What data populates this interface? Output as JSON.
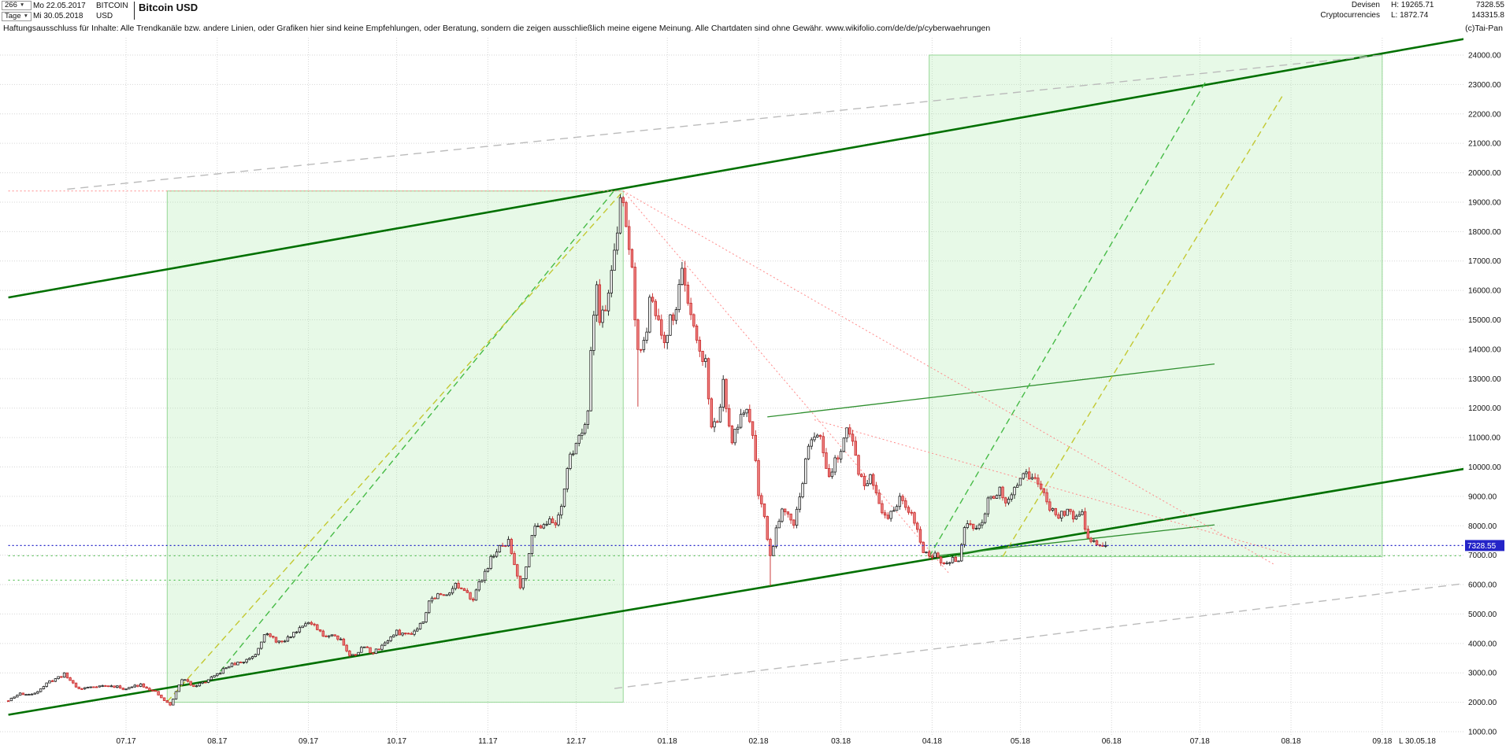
{
  "header": {
    "bars_select": "266",
    "timeframe_select": "Tage",
    "date_from": "Mo 22.05.2017",
    "date_to": "Mi 30.05.2018",
    "symbol": "BITCOIN",
    "symbol_row2": "USD",
    "title": "Bitcoin USD",
    "category_line1": "Devisen",
    "category_line2": "Cryptocurrencies",
    "high_label": "H: 19265.71",
    "low_label": "L: 1872.74",
    "last_price_text": "7328.55",
    "volume_text": "143315.8",
    "credit": "(c)Tai-Pan"
  },
  "disclaimer": {
    "text": "Haftungsausschluss für Inhalte: Alle Trendkanäle bzw. andere Linien, oder Grafiken hier sind keine Empfehlungen, oder Beratung, sondern die zeigen ausschließlich meine eigene Meinung. Alle Chartdaten sind ohne Gewähr.",
    "url": "www.wikifolio.com/de/de/p/cyberwaehrungen"
  },
  "chart_data": {
    "type": "candlestick",
    "instrument": "Bitcoin USD",
    "timeframe": "Tage",
    "x_start_date": "22.05.2017",
    "x_end_date": "30.05.2018",
    "last_price": 7328.55,
    "high": 19265.71,
    "low": 1872.74,
    "bars_visible": 266,
    "y_axis": {
      "min": 1000,
      "max": 24000,
      "step": 1000
    },
    "x_axis": {
      "labels": [
        "07.17",
        "08.17",
        "09.17",
        "10.17",
        "11.17",
        "12.17",
        "01.18",
        "02.18",
        "03.18",
        "04.18",
        "05.18",
        "06.18",
        "07.18",
        "08.18",
        "09.18"
      ],
      "label_days": [
        40,
        71,
        102,
        132,
        163,
        193,
        224,
        255,
        283,
        314,
        344,
        375,
        405,
        436,
        467
      ],
      "last_bar_label": "L  30.05.18"
    },
    "keyframes": [
      [
        0,
        2050
      ],
      [
        4,
        2300
      ],
      [
        8,
        2250
      ],
      [
        14,
        2700
      ],
      [
        19,
        2950
      ],
      [
        24,
        2450
      ],
      [
        30,
        2560
      ],
      [
        36,
        2540
      ],
      [
        40,
        2450
      ],
      [
        45,
        2620
      ],
      [
        50,
        2330
      ],
      [
        53,
        2060
      ],
      [
        55,
        1900
      ],
      [
        57,
        2350
      ],
      [
        59,
        2800
      ],
      [
        63,
        2560
      ],
      [
        67,
        2700
      ],
      [
        70,
        2870
      ],
      [
        75,
        3250
      ],
      [
        80,
        3380
      ],
      [
        84,
        3650
      ],
      [
        87,
        4350
      ],
      [
        90,
        4150
      ],
      [
        93,
        4010
      ],
      [
        97,
        4350
      ],
      [
        101,
        4750
      ],
      [
        104,
        4560
      ],
      [
        107,
        4260
      ],
      [
        110,
        4310
      ],
      [
        113,
        4160
      ],
      [
        116,
        3560
      ],
      [
        118,
        3660
      ],
      [
        121,
        3900
      ],
      [
        124,
        3660
      ],
      [
        127,
        3950
      ],
      [
        130,
        4200
      ],
      [
        132,
        4380
      ],
      [
        135,
        4310
      ],
      [
        138,
        4420
      ],
      [
        141,
        4800
      ],
      [
        143,
        5450
      ],
      [
        146,
        5650
      ],
      [
        148,
        5610
      ],
      [
        152,
        6000
      ],
      [
        155,
        5710
      ],
      [
        158,
        5560
      ],
      [
        162,
        6450
      ],
      [
        165,
        7050
      ],
      [
        168,
        7300
      ],
      [
        170,
        7450
      ],
      [
        172,
        6700
      ],
      [
        174,
        5960
      ],
      [
        176,
        6560
      ],
      [
        178,
        7800
      ],
      [
        181,
        8050
      ],
      [
        183,
        8160
      ],
      [
        186,
        8060
      ],
      [
        188,
        8750
      ],
      [
        190,
        9950
      ],
      [
        193,
        10900
      ],
      [
        195,
        11200
      ],
      [
        197,
        12000
      ],
      [
        198,
        14100
      ],
      [
        200,
        16200
      ],
      [
        201,
        15100
      ],
      [
        203,
        15300
      ],
      [
        205,
        16750
      ],
      [
        207,
        17800
      ],
      [
        208,
        19100
      ],
      [
        209,
        18960
      ],
      [
        211,
        17500
      ],
      [
        212,
        16600
      ],
      [
        214,
        13900
      ],
      [
        216,
        14100
      ],
      [
        218,
        15500
      ],
      [
        220,
        15300
      ],
      [
        223,
        14000
      ],
      [
        225,
        15100
      ],
      [
        227,
        15250
      ],
      [
        229,
        17000
      ],
      [
        231,
        15300
      ],
      [
        233,
        14600
      ],
      [
        235,
        13850
      ],
      [
        237,
        13600
      ],
      [
        239,
        11300
      ],
      [
        241,
        11600
      ],
      [
        243,
        12850
      ],
      [
        245,
        11200
      ],
      [
        246,
        10900
      ],
      [
        248,
        11500
      ],
      [
        251,
        11800
      ],
      [
        253,
        11200
      ],
      [
        255,
        9150
      ],
      [
        257,
        8300
      ],
      [
        259,
        6950
      ],
      [
        261,
        7900
      ],
      [
        263,
        8650
      ],
      [
        265,
        8500
      ],
      [
        267,
        8100
      ],
      [
        269,
        8900
      ],
      [
        271,
        10150
      ],
      [
        273,
        11100
      ],
      [
        275,
        11250
      ],
      [
        277,
        10500
      ],
      [
        279,
        9700
      ],
      [
        281,
        10300
      ],
      [
        283,
        10350
      ],
      [
        285,
        11250
      ],
      [
        287,
        10900
      ],
      [
        289,
        9900
      ],
      [
        291,
        9300
      ],
      [
        293,
        9600
      ],
      [
        295,
        9000
      ],
      [
        297,
        8300
      ],
      [
        299,
        8300
      ],
      [
        301,
        8600
      ],
      [
        303,
        8950
      ],
      [
        305,
        8500
      ],
      [
        307,
        8450
      ],
      [
        309,
        7900
      ],
      [
        311,
        7100
      ],
      [
        313,
        6900
      ],
      [
        315,
        7050
      ],
      [
        317,
        6750
      ],
      [
        319,
        6650
      ],
      [
        321,
        6850
      ],
      [
        323,
        6800
      ],
      [
        325,
        7900
      ],
      [
        327,
        8000
      ],
      [
        329,
        7900
      ],
      [
        331,
        8250
      ],
      [
        333,
        8850
      ],
      [
        335,
        8950
      ],
      [
        337,
        9350
      ],
      [
        339,
        8850
      ],
      [
        341,
        9100
      ],
      [
        343,
        9250
      ],
      [
        345,
        9650
      ],
      [
        347,
        9700
      ],
      [
        349,
        9500
      ],
      [
        351,
        9350
      ],
      [
        353,
        8700
      ],
      [
        355,
        8450
      ],
      [
        357,
        8350
      ],
      [
        359,
        8500
      ],
      [
        361,
        8450
      ],
      [
        363,
        8250
      ],
      [
        365,
        8350
      ],
      [
        367,
        7600
      ],
      [
        369,
        7500
      ],
      [
        371,
        7350
      ],
      [
        373,
        7328
      ]
    ],
    "anchors": {
      "55": {
        "low": 1872.74
      },
      "208": {
        "high": 19265.71
      },
      "214": {
        "low": 12050
      },
      "259": {
        "low": 5950
      },
      "373": {
        "close": 7328.55
      }
    },
    "overlays": {
      "boxes": [
        {
          "name": "projection-box-1",
          "d1": 54,
          "p1": 2000,
          "d2": 209,
          "p2": 19380
        },
        {
          "name": "projection-box-2",
          "d1": 313,
          "p1": 6950,
          "d2": 467,
          "p2": 24000
        }
      ],
      "lines": [
        {
          "name": "lower-channel-line",
          "d1": 0,
          "p1": 1575,
          "d2": 500,
          "p2": 10020,
          "color": "#007000",
          "w": 2.6,
          "dash": ""
        },
        {
          "name": "upper-channel-line",
          "d1": 0,
          "p1": 15760,
          "d2": 500,
          "p2": 24640,
          "color": "#007000",
          "w": 2.6,
          "dash": ""
        },
        {
          "name": "triangle-upper-line",
          "d1": 258,
          "p1": 11700,
          "d2": 410,
          "p2": 13500,
          "color": "#2f8f2f",
          "w": 1.3,
          "dash": ""
        },
        {
          "name": "triangle-lower-line",
          "d1": 313,
          "p1": 6950,
          "d2": 410,
          "p2": 8030,
          "color": "#2f8f2f",
          "w": 1.3,
          "dash": ""
        },
        {
          "name": "projection-green-dashed-1",
          "d1": 72,
          "p1": 3050,
          "d2": 206,
          "p2": 19400,
          "color": "#46bb46",
          "w": 1.4,
          "dash": "8,5"
        },
        {
          "name": "projection-green-dashed-2",
          "d1": 313,
          "p1": 6950,
          "d2": 407,
          "p2": 23100,
          "color": "#46bb46",
          "w": 1.4,
          "dash": "8,5"
        },
        {
          "name": "projection-yellow-dashed-1",
          "d1": 54,
          "p1": 2020,
          "d2": 209,
          "p2": 19380,
          "color": "#c3c832",
          "w": 1.4,
          "dash": "8,5"
        },
        {
          "name": "projection-yellow-dashed-2",
          "d1": 338,
          "p1": 6950,
          "d2": 433,
          "p2": 22600,
          "color": "#c3c832",
          "w": 1.4,
          "dash": "8,5"
        },
        {
          "name": "gray-channel-upper",
          "d1": 20,
          "p1": 19440,
          "d2": 467,
          "p2": 24000,
          "color": "#bbbbbb",
          "w": 1.4,
          "dash": "10,7"
        },
        {
          "name": "gray-channel-lower",
          "d1": 206,
          "p1": 2470,
          "d2": 500,
          "p2": 6100,
          "color": "#bbbbbb",
          "w": 1.4,
          "dash": "10,7"
        },
        {
          "name": "peak-horizontal-red",
          "d1": 0,
          "p1": 19380,
          "d2": 209,
          "p2": 19380,
          "color": "#ff8a8a",
          "w": 1,
          "dash": "2,3"
        },
        {
          "name": "descending-red-1",
          "d1": 209,
          "p1": 19380,
          "d2": 430,
          "p2": 6700,
          "color": "#ff8a8a",
          "w": 1,
          "dash": "2,3"
        },
        {
          "name": "descending-red-2",
          "d1": 209,
          "p1": 19380,
          "d2": 320,
          "p2": 6350,
          "color": "#ff8a8a",
          "w": 1,
          "dash": "2,3"
        },
        {
          "name": "descending-red-3",
          "d1": 274,
          "p1": 11600,
          "d2": 436,
          "p2": 7000,
          "color": "#ff8a8a",
          "w": 1,
          "dash": "2,3"
        },
        {
          "name": "support-green-dotted-1",
          "d1": 0,
          "p1": 6980,
          "d2": 497,
          "p2": 6980,
          "color": "#3bb53b",
          "w": 1,
          "dash": "2,4"
        },
        {
          "name": "support-green-dotted-2",
          "d1": 0,
          "p1": 6150,
          "d2": 206,
          "p2": 6150,
          "color": "#3bb53b",
          "w": 1,
          "dash": "2,4"
        },
        {
          "name": "current-price-line",
          "d1": 0,
          "p1": 7328.55,
          "d2": 497,
          "p2": 7328.55,
          "color": "#2424c8",
          "w": 1.2,
          "dash": "2,3"
        }
      ]
    },
    "colors": {
      "up_stroke": "#1a1a1a",
      "up_fill": "#ffffff",
      "down_stroke": "#c62828",
      "down_fill": "#ef8080",
      "grid": "#d6d6d6",
      "axis_text": "#111111",
      "box_fill": "rgba(170,232,170,0.28)",
      "box_stroke": "#96d696",
      "tag_bg": "#2424c8",
      "tag_text": "#ffffff"
    }
  }
}
